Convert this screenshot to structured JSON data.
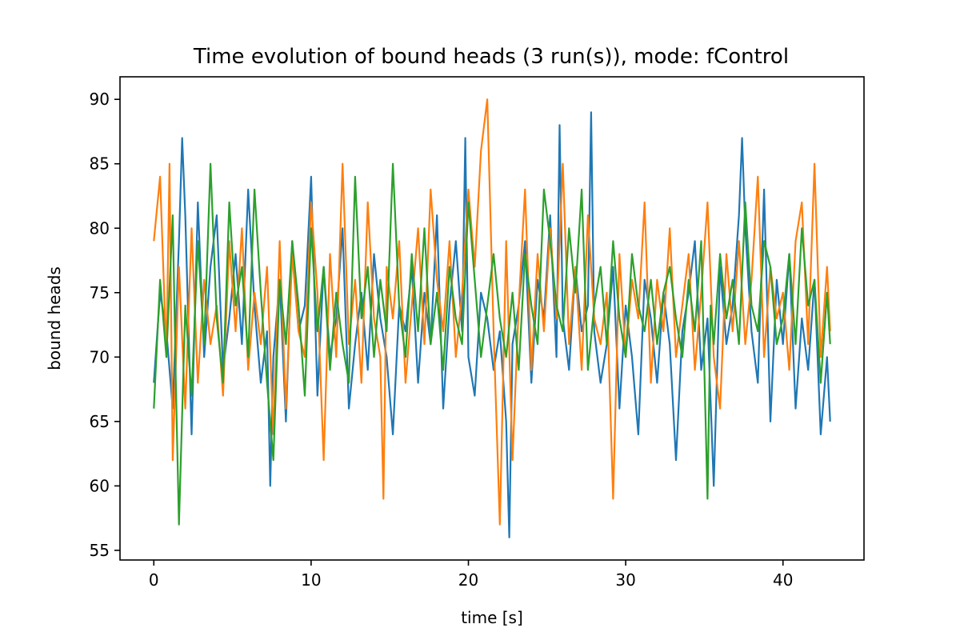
{
  "chart_data": {
    "type": "line",
    "title": "Time evolution of bound heads (3 run(s)), mode: fControl",
    "xlabel": "time [s]",
    "ylabel": "bound heads",
    "xlim": [
      -2.15,
      45.15
    ],
    "ylim": [
      54.25,
      91.75
    ],
    "xticks": [
      0,
      10,
      20,
      30,
      40
    ],
    "yticks": [
      55,
      60,
      65,
      70,
      75,
      80,
      85,
      90
    ],
    "grid": false,
    "legend": false,
    "series": [
      {
        "color": "#1f77b4",
        "x": [
          0.0,
          0.4,
          0.8,
          1.2,
          1.6,
          1.8,
          2.0,
          2.4,
          2.8,
          3.2,
          3.6,
          4.0,
          4.4,
          4.8,
          5.2,
          5.6,
          6.0,
          6.4,
          6.8,
          7.2,
          7.4,
          7.6,
          8.0,
          8.4,
          8.8,
          9.2,
          9.6,
          10.0,
          10.4,
          10.8,
          11.2,
          11.6,
          12.0,
          12.4,
          12.8,
          13.2,
          13.6,
          14.0,
          14.4,
          14.8,
          15.2,
          15.6,
          16.0,
          16.4,
          16.8,
          17.2,
          17.6,
          18.0,
          18.4,
          18.8,
          19.2,
          19.6,
          19.8,
          20.0,
          20.4,
          20.8,
          21.2,
          21.6,
          22.0,
          22.4,
          22.6,
          22.8,
          23.2,
          23.6,
          24.0,
          24.4,
          24.8,
          25.2,
          25.6,
          25.8,
          26.0,
          26.4,
          26.8,
          27.2,
          27.6,
          27.8,
          28.0,
          28.4,
          28.8,
          29.2,
          29.6,
          30.0,
          30.4,
          30.8,
          31.2,
          31.6,
          32.0,
          32.4,
          32.8,
          33.2,
          33.6,
          34.0,
          34.4,
          34.8,
          35.2,
          35.6,
          36.0,
          36.4,
          36.8,
          37.2,
          37.4,
          37.6,
          38.0,
          38.4,
          38.8,
          39.2,
          39.6,
          40.0,
          40.4,
          40.8,
          41.2,
          41.6,
          42.0,
          42.4,
          42.8,
          43.0
        ],
        "y": [
          68,
          75,
          72,
          66,
          79,
          87,
          81,
          64,
          82,
          70,
          77,
          81,
          69,
          73,
          78,
          71,
          83,
          74,
          68,
          72,
          60,
          70,
          76,
          65,
          79,
          72,
          74,
          84,
          67,
          77,
          70,
          73,
          80,
          66,
          71,
          75,
          69,
          78,
          73,
          70,
          64,
          74,
          72,
          77,
          68,
          75,
          71,
          81,
          66,
          74,
          79,
          72,
          87,
          70,
          67,
          75,
          73,
          69,
          72,
          65,
          56,
          71,
          74,
          79,
          68,
          76,
          73,
          81,
          70,
          88,
          73,
          69,
          77,
          72,
          74,
          89,
          72,
          68,
          71,
          77,
          66,
          74,
          70,
          64,
          76,
          73,
          68,
          75,
          71,
          62,
          72,
          75,
          79,
          69,
          73,
          60,
          77,
          71,
          74,
          81,
          87,
          80,
          72,
          68,
          83,
          65,
          76,
          71,
          78,
          66,
          73,
          69,
          76,
          64,
          70,
          65
        ]
      },
      {
        "color": "#ff7f0e",
        "x": [
          0.0,
          0.4,
          0.8,
          1.0,
          1.2,
          1.6,
          2.0,
          2.4,
          2.8,
          3.2,
          3.6,
          4.0,
          4.4,
          4.8,
          5.2,
          5.6,
          6.0,
          6.4,
          6.8,
          7.2,
          7.6,
          8.0,
          8.4,
          8.8,
          9.2,
          9.6,
          10.0,
          10.4,
          10.8,
          11.2,
          11.6,
          12.0,
          12.4,
          12.8,
          13.2,
          13.6,
          14.0,
          14.4,
          14.6,
          14.8,
          15.2,
          15.6,
          16.0,
          16.4,
          16.8,
          17.2,
          17.6,
          18.0,
          18.4,
          18.8,
          19.2,
          19.6,
          20.0,
          20.4,
          20.8,
          21.2,
          21.6,
          22.0,
          22.4,
          22.8,
          23.2,
          23.6,
          24.0,
          24.4,
          24.8,
          25.2,
          25.6,
          26.0,
          26.4,
          26.8,
          27.2,
          27.6,
          28.0,
          28.4,
          28.8,
          29.2,
          29.6,
          30.0,
          30.4,
          30.8,
          31.2,
          31.6,
          32.0,
          32.4,
          32.8,
          33.2,
          33.6,
          34.0,
          34.4,
          34.8,
          35.2,
          35.6,
          36.0,
          36.4,
          36.8,
          37.2,
          37.6,
          38.0,
          38.4,
          38.8,
          39.2,
          39.6,
          40.0,
          40.4,
          40.8,
          41.2,
          41.6,
          42.0,
          42.4,
          42.8,
          43.0
        ],
        "y": [
          79,
          84,
          70,
          85,
          62,
          77,
          66,
          80,
          68,
          76,
          71,
          74,
          67,
          79,
          72,
          80,
          69,
          75,
          71,
          77,
          64,
          79,
          66,
          78,
          72,
          70,
          82,
          75,
          62,
          78,
          70,
          85,
          71,
          76,
          68,
          82,
          73,
          70,
          59,
          77,
          73,
          79,
          68,
          74,
          80,
          71,
          83,
          76,
          72,
          79,
          70,
          75,
          83,
          77,
          86,
          90,
          72,
          57,
          79,
          62,
          74,
          83,
          69,
          78,
          72,
          80,
          73,
          85,
          71,
          77,
          69,
          81,
          73,
          71,
          75,
          59,
          78,
          70,
          76,
          73,
          82,
          68,
          76,
          72,
          80,
          70,
          74,
          78,
          69,
          75,
          82,
          70,
          66,
          78,
          72,
          79,
          71,
          76,
          84,
          70,
          77,
          73,
          75,
          69,
          79,
          82,
          71,
          85,
          70,
          77,
          72
        ]
      },
      {
        "color": "#2ca02c",
        "x": [
          0.0,
          0.4,
          0.8,
          1.2,
          1.4,
          1.6,
          2.0,
          2.4,
          2.8,
          3.2,
          3.6,
          4.0,
          4.4,
          4.8,
          5.2,
          5.6,
          6.0,
          6.4,
          6.8,
          7.2,
          7.6,
          8.0,
          8.4,
          8.8,
          9.2,
          9.6,
          10.0,
          10.4,
          10.8,
          11.2,
          11.6,
          12.0,
          12.4,
          12.8,
          13.2,
          13.6,
          14.0,
          14.4,
          14.8,
          15.2,
          15.6,
          16.0,
          16.4,
          16.8,
          17.2,
          17.6,
          18.0,
          18.4,
          18.8,
          19.2,
          19.6,
          20.0,
          20.4,
          20.8,
          21.2,
          21.6,
          22.0,
          22.4,
          22.8,
          23.2,
          23.6,
          24.0,
          24.4,
          24.8,
          25.2,
          25.6,
          26.0,
          26.4,
          26.8,
          27.2,
          27.6,
          28.0,
          28.4,
          28.8,
          29.2,
          29.6,
          30.0,
          30.4,
          30.8,
          31.2,
          31.6,
          32.0,
          32.4,
          32.8,
          33.2,
          33.6,
          34.0,
          34.4,
          34.8,
          35.2,
          35.4,
          35.6,
          36.0,
          36.4,
          36.8,
          37.2,
          37.6,
          38.0,
          38.4,
          38.8,
          39.2,
          39.6,
          40.0,
          40.4,
          40.8,
          41.2,
          41.6,
          42.0,
          42.4,
          42.8,
          43.0
        ],
        "y": [
          66,
          76,
          70,
          81,
          68,
          57,
          74,
          67,
          79,
          71,
          85,
          73,
          68,
          82,
          74,
          77,
          70,
          83,
          75,
          68,
          62,
          76,
          71,
          79,
          74,
          67,
          80,
          72,
          77,
          69,
          75,
          71,
          68,
          84,
          73,
          77,
          70,
          76,
          72,
          85,
          74,
          70,
          78,
          72,
          80,
          71,
          75,
          69,
          77,
          73,
          71,
          82,
          76,
          70,
          74,
          78,
          73,
          70,
          75,
          69,
          78,
          74,
          71,
          83,
          79,
          74,
          72,
          80,
          75,
          83,
          69,
          74,
          77,
          71,
          79,
          73,
          70,
          78,
          74,
          72,
          76,
          71,
          75,
          77,
          73,
          70,
          76,
          72,
          79,
          59,
          74,
          71,
          78,
          73,
          76,
          71,
          82,
          74,
          72,
          79,
          77,
          71,
          73,
          78,
          71,
          80,
          74,
          76,
          68,
          75,
          71
        ]
      }
    ]
  }
}
